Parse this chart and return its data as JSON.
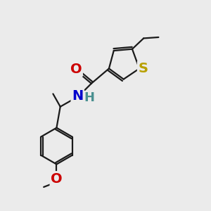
{
  "background_color": "#ebebeb",
  "bond_color": "#1a1a1a",
  "bond_width": 1.6,
  "atoms": {
    "S": {
      "color": "#b8a000",
      "fontsize": 14,
      "fontweight": "bold"
    },
    "O": {
      "color": "#cc0000",
      "fontsize": 14,
      "fontweight": "bold"
    },
    "N": {
      "color": "#0000cc",
      "fontsize": 14,
      "fontweight": "bold"
    },
    "H": {
      "color": "#4a9090",
      "fontsize": 13,
      "fontweight": "bold"
    }
  },
  "figsize": [
    3.0,
    3.0
  ],
  "dpi": 100
}
